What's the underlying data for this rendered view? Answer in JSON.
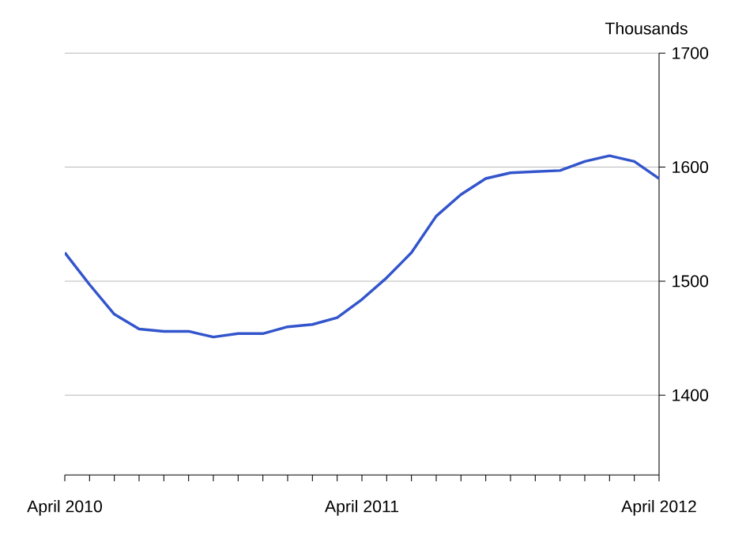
{
  "chart_data": {
    "type": "line",
    "ylabel": "Thousands",
    "x": [
      "2010-04",
      "2010-05",
      "2010-06",
      "2010-07",
      "2010-08",
      "2010-09",
      "2010-10",
      "2010-11",
      "2010-12",
      "2011-01",
      "2011-02",
      "2011-03",
      "2011-04",
      "2011-05",
      "2011-06",
      "2011-07",
      "2011-08",
      "2011-09",
      "2011-10",
      "2011-11",
      "2011-12",
      "2012-01",
      "2012-02",
      "2012-03",
      "2012-04"
    ],
    "series": [
      {
        "color": "#3355cc",
        "values": [
          1525,
          1497,
          1471,
          1458,
          1456,
          1456,
          1451,
          1454,
          1454,
          1460,
          1462,
          1468,
          1484,
          1503,
          1525,
          1557,
          1576,
          1590,
          1595,
          1596,
          1597,
          1605,
          1610,
          1605,
          1590
        ]
      }
    ],
    "xlim": [
      "2010-04",
      "2012-04"
    ],
    "xticks": [
      {
        "value": "2010-04",
        "label": "April 2010"
      },
      {
        "value": "2010-05",
        "label": null
      },
      {
        "value": "2010-06",
        "label": null
      },
      {
        "value": "2010-07",
        "label": null
      },
      {
        "value": "2010-08",
        "label": null
      },
      {
        "value": "2010-09",
        "label": null
      },
      {
        "value": "2010-10",
        "label": null
      },
      {
        "value": "2010-11",
        "label": null
      },
      {
        "value": "2010-12",
        "label": null
      },
      {
        "value": "2011-01",
        "label": null
      },
      {
        "value": "2011-02",
        "label": null
      },
      {
        "value": "2011-03",
        "label": null
      },
      {
        "value": "2011-04",
        "label": "April 2011"
      },
      {
        "value": "2011-05",
        "label": null
      },
      {
        "value": "2011-06",
        "label": null
      },
      {
        "value": "2011-07",
        "label": null
      },
      {
        "value": "2011-08",
        "label": null
      },
      {
        "value": "2011-09",
        "label": null
      },
      {
        "value": "2011-10",
        "label": null
      },
      {
        "value": "2011-11",
        "label": null
      },
      {
        "value": "2011-12",
        "label": null
      },
      {
        "value": "2012-01",
        "label": null
      },
      {
        "value": "2012-02",
        "label": null
      },
      {
        "value": "2012-03",
        "label": null
      },
      {
        "value": "2012-04",
        "label": "April 2012"
      }
    ],
    "ylim": [
      1330,
      1700
    ],
    "yticks": [
      1400,
      1500,
      1600,
      1700
    ],
    "grid": "y",
    "marker": "none",
    "line_style": "solid"
  }
}
